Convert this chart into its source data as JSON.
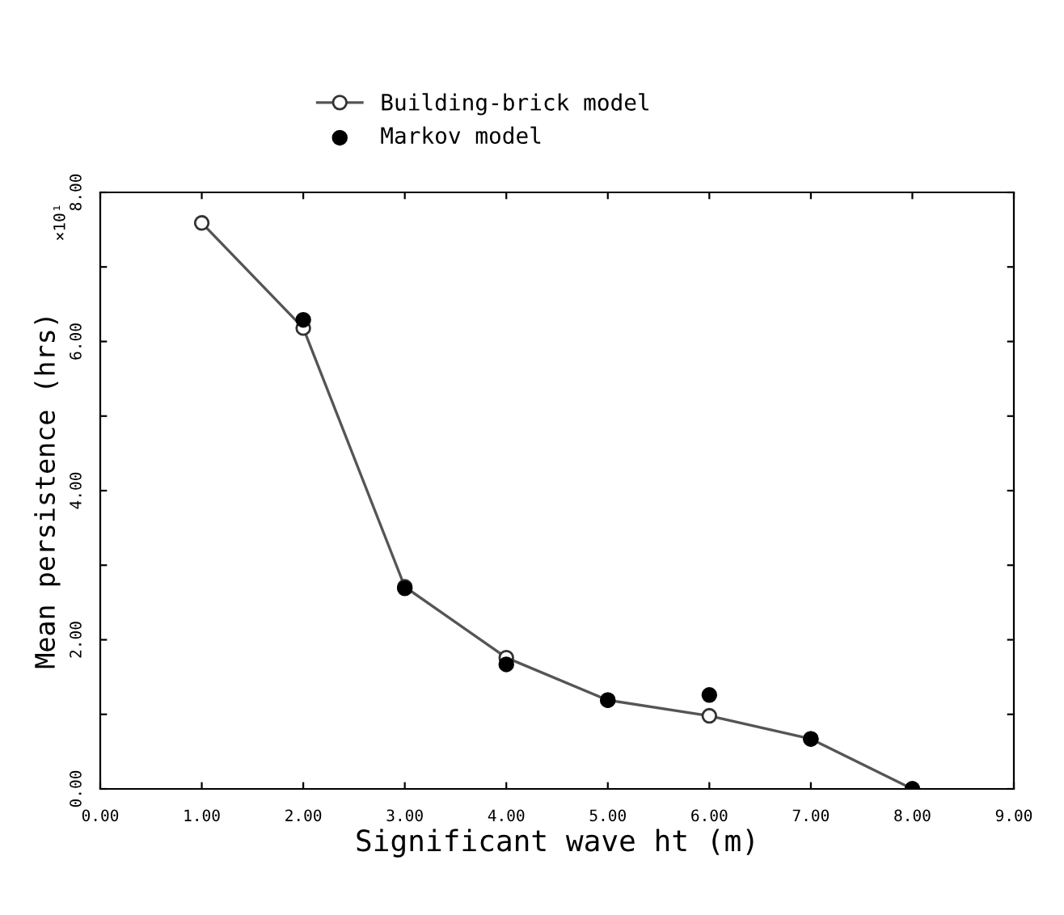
{
  "chart_data": {
    "type": "line",
    "xlabel": "Significant wave ht (m)",
    "ylabel": "Mean persistence (hrs)",
    "annotations": [
      "×10¹"
    ],
    "x": [
      1,
      2,
      3,
      4,
      5,
      6,
      7,
      8
    ],
    "series": [
      {
        "name": "Building-brick model",
        "color": "#555555",
        "marker": "circle",
        "values": [
          7.59,
          6.18,
          2.71,
          1.76,
          1.19,
          0.98,
          0.67,
          0
        ]
      },
      {
        "name": "Markov model",
        "type": "scatter",
        "color": "#000000",
        "marker": "circle",
        "values": [
          null,
          6.29,
          2.69,
          1.67,
          1.19,
          1.26,
          0.67,
          0
        ]
      }
    ],
    "xlim": [
      0,
      9
    ],
    "xticks": [
      {
        "value": 0,
        "label": "0.00"
      },
      {
        "value": 1,
        "label": "1.00"
      },
      {
        "value": 2,
        "label": "2.00"
      },
      {
        "value": 3,
        "label": "3.00"
      },
      {
        "value": 4,
        "label": "4.00"
      },
      {
        "value": 5,
        "label": "5.00"
      },
      {
        "value": 6,
        "label": "6.00"
      },
      {
        "value": 7,
        "label": "7.00"
      },
      {
        "value": 8,
        "label": "8.00"
      },
      {
        "value": 9,
        "label": "9.00"
      }
    ],
    "ylim": [
      0,
      8
    ],
    "yticks": [
      {
        "value": 0,
        "label": "0.00"
      },
      {
        "value": 1,
        "label": null
      },
      {
        "value": 2,
        "label": "2.00"
      },
      {
        "value": 3,
        "label": null
      },
      {
        "value": 4,
        "label": "4.00"
      },
      {
        "value": 5,
        "label": null
      },
      {
        "value": 6,
        "label": "6.00"
      },
      {
        "value": 7,
        "label": null
      },
      {
        "value": 8,
        "label": "8.00"
      }
    ],
    "grid": false,
    "legend": "top"
  }
}
